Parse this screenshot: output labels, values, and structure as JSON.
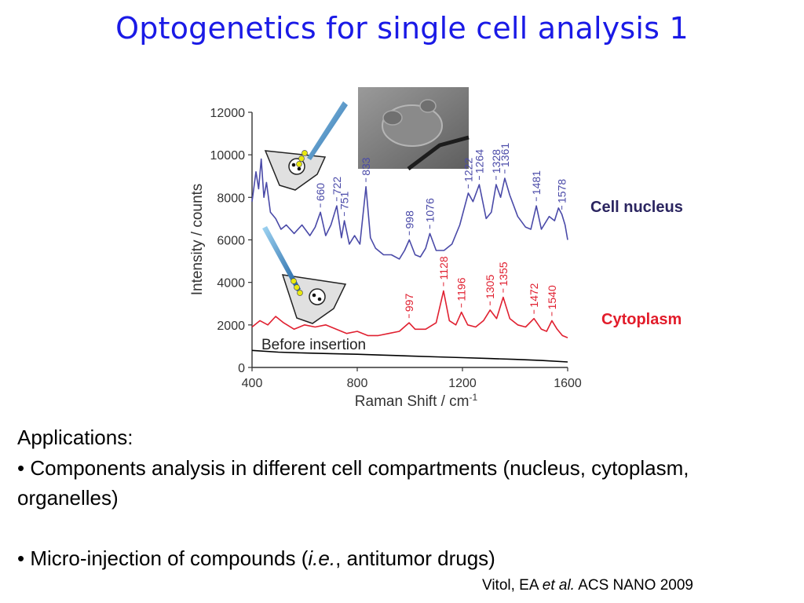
{
  "slide": {
    "title": "Optogenetics for single cell analysis 1",
    "applications_heading": "Applications:",
    "bullet1": "• Components analysis in different cell compartments (nucleus, cytoplasm, organelles)",
    "bullet2_pre": "• Micro-injection of compounds (",
    "bullet2_ie": "i.e.",
    "bullet2_post": ", antitumor drugs)",
    "citation_pre": "Vitol,  EA ",
    "citation_etal": "et al.",
    "citation_post": " ACS NANO 2009"
  },
  "chart_data": {
    "type": "line",
    "xlabel": "Raman Shift / cm",
    "xlabel_sup": "-1",
    "ylabel": "Intensity / counts",
    "xlim": [
      400,
      1600
    ],
    "ylim": [
      0,
      12000
    ],
    "x_ticks": [
      400,
      800,
      1200,
      1600
    ],
    "y_ticks": [
      0,
      2000,
      4000,
      6000,
      8000,
      10000,
      12000
    ],
    "colors": {
      "nucleus": "#4a4aa8",
      "cytoplasm": "#e02030",
      "baseline": "#000000"
    },
    "side_labels": {
      "nucleus": "Cell nucleus",
      "cytoplasm": "Cytoplasm"
    },
    "baseline_label": "Before insertion",
    "series": [
      {
        "name": "Cell nucleus",
        "x": [
          400,
          415,
          425,
          435,
          445,
          455,
          470,
          490,
          510,
          530,
          560,
          590,
          620,
          640,
          660,
          680,
          700,
          722,
          740,
          751,
          770,
          790,
          810,
          833,
          850,
          870,
          900,
          930,
          960,
          980,
          998,
          1020,
          1040,
          1060,
          1076,
          1100,
          1130,
          1160,
          1190,
          1222,
          1240,
          1264,
          1290,
          1310,
          1328,
          1345,
          1361,
          1380,
          1410,
          1440,
          1460,
          1481,
          1500,
          1530,
          1550,
          1565,
          1578,
          1590,
          1600
        ],
        "y": [
          7800,
          9200,
          8400,
          9800,
          8000,
          8700,
          7300,
          7000,
          6500,
          6700,
          6300,
          6700,
          6200,
          6600,
          7300,
          6200,
          6700,
          7600,
          6100,
          6900,
          5800,
          6200,
          5800,
          8500,
          6100,
          5600,
          5300,
          5300,
          5100,
          5500,
          6000,
          5300,
          5200,
          5600,
          6300,
          5500,
          5500,
          5800,
          6700,
          8200,
          7800,
          8600,
          7000,
          7300,
          8600,
          8000,
          8900,
          8100,
          7100,
          6600,
          6500,
          7600,
          6500,
          7100,
          6900,
          7500,
          7200,
          6700,
          6000
        ],
        "peak_labels": [
          660,
          722,
          751,
          833,
          998,
          1076,
          1222,
          1264,
          1328,
          1361,
          1481,
          1578
        ]
      },
      {
        "name": "Cytoplasm",
        "x": [
          400,
          430,
          460,
          490,
          520,
          560,
          600,
          640,
          680,
          720,
          760,
          800,
          840,
          880,
          920,
          960,
          997,
          1020,
          1060,
          1100,
          1128,
          1150,
          1175,
          1196,
          1220,
          1250,
          1280,
          1305,
          1330,
          1355,
          1380,
          1410,
          1440,
          1472,
          1500,
          1520,
          1540,
          1560,
          1580,
          1600
        ],
        "y": [
          1900,
          2200,
          2000,
          2400,
          2100,
          1800,
          2000,
          1900,
          2000,
          1800,
          1600,
          1700,
          1500,
          1500,
          1600,
          1700,
          2100,
          1800,
          1800,
          2100,
          3600,
          2200,
          2000,
          2600,
          2000,
          1900,
          2200,
          2700,
          2300,
          3300,
          2300,
          2000,
          1900,
          2300,
          1800,
          1700,
          2200,
          1800,
          1500,
          1400
        ],
        "peak_labels": [
          997,
          1128,
          1196,
          1305,
          1355,
          1472,
          1540
        ]
      },
      {
        "name": "Before insertion",
        "x": [
          400,
          500,
          600,
          700,
          800,
          900,
          1000,
          1100,
          1200,
          1300,
          1400,
          1500,
          1600
        ],
        "y": [
          800,
          720,
          680,
          650,
          620,
          580,
          540,
          500,
          460,
          420,
          380,
          330,
          260
        ]
      }
    ]
  }
}
